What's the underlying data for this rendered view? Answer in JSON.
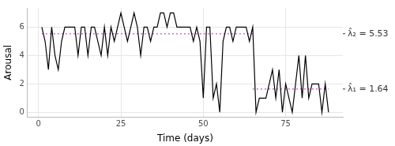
{
  "chart_data": {
    "type": "line",
    "x_label": "Time (days)",
    "y_label": "Arousal",
    "x": [
      1,
      2,
      3,
      4,
      5,
      6,
      7,
      8,
      9,
      10,
      11,
      12,
      13,
      14,
      15,
      16,
      17,
      18,
      19,
      20,
      21,
      22,
      23,
      24,
      25,
      26,
      27,
      28,
      29,
      30,
      31,
      32,
      33,
      34,
      35,
      36,
      37,
      38,
      39,
      40,
      41,
      42,
      43,
      44,
      45,
      46,
      47,
      48,
      49,
      50,
      51,
      52,
      53,
      54,
      55,
      56,
      57,
      58,
      59,
      60,
      61,
      62,
      63,
      64,
      65,
      66,
      67,
      68,
      69,
      70,
      71,
      72,
      73,
      74,
      75,
      76,
      77,
      78,
      79,
      80,
      81,
      82,
      83,
      84,
      85,
      86,
      87,
      88
    ],
    "values": [
      6,
      5,
      3,
      6,
      4,
      3,
      5,
      6,
      6,
      6,
      6,
      4,
      6,
      6,
      4,
      6,
      6,
      5,
      4,
      6,
      4,
      6,
      5,
      6,
      7,
      6,
      5,
      6,
      7,
      6,
      4,
      6,
      6,
      5,
      6,
      6,
      7,
      7,
      6,
      7,
      7,
      6,
      6,
      6,
      6,
      6,
      5,
      6,
      5,
      1,
      6,
      6,
      1,
      2,
      0,
      5,
      6,
      6,
      5,
      6,
      6,
      6,
      6,
      5,
      6,
      0,
      1,
      1,
      1,
      2,
      3,
      1,
      3,
      0,
      2,
      1,
      0,
      2,
      4,
      1,
      4,
      1,
      2,
      2,
      2,
      0,
      2,
      0
    ],
    "color": "#000000",
    "segments": [
      {
        "label": "λ̂₂ = 5.53",
        "value": 5.53,
        "x_start": 1,
        "x_end": 65,
        "color": "#e060e0",
        "line_style": "dotted"
      },
      {
        "label": "λ̂₁ = 1.64",
        "value": 1.64,
        "x_start": 65,
        "x_end": 88,
        "color": "#e060e0",
        "line_style": "dotted"
      }
    ],
    "xlim": [
      -3.35,
      92.35
    ],
    "ylim": [
      -0.35,
      7.35
    ],
    "xticks": [
      0,
      25,
      50,
      75
    ],
    "yticks": [
      0,
      2,
      4,
      6
    ],
    "grid": true
  }
}
